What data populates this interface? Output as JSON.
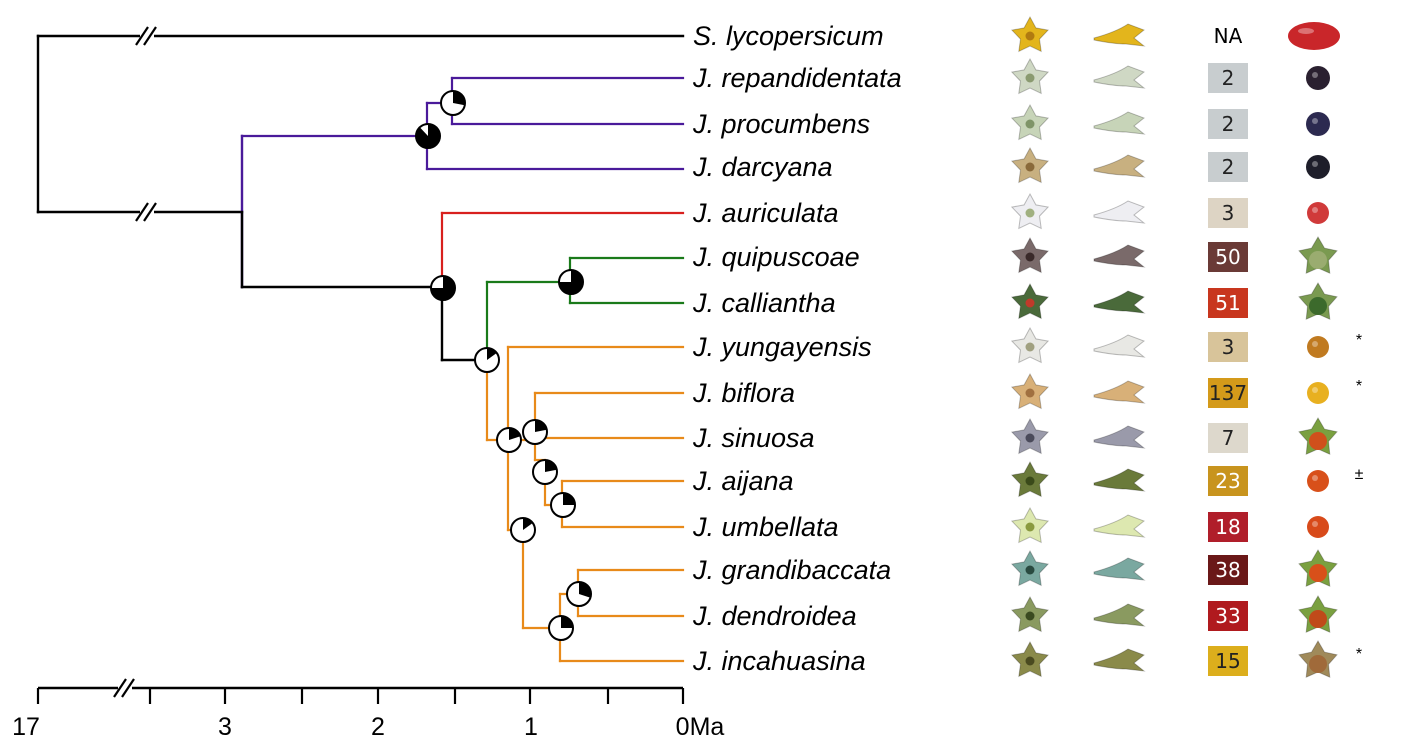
{
  "taxa": [
    {
      "name": "S. lycopersicum",
      "count": "NA",
      "count_color": "#ffffff",
      "count_text": "#000000",
      "mark": "",
      "flower": "#e3b51c",
      "flower_center": "#b07a10",
      "fruit": "#c9262a"
    },
    {
      "name": "J. repandidentata",
      "count": "2",
      "count_color": "#c8cdcf",
      "count_text": "#222222",
      "mark": "",
      "flower": "#cfd8c4",
      "flower_center": "#8a9a70",
      "fruit": "#2a2030"
    },
    {
      "name": "J. procumbens",
      "count": "2",
      "count_color": "#c8cdcf",
      "count_text": "#222222",
      "mark": "",
      "flower": "#c7d4b8",
      "flower_center": "#7f9468",
      "fruit": "#2c2a50"
    },
    {
      "name": "J. darcyana",
      "count": "2",
      "count_color": "#c8cdcf",
      "count_text": "#222222",
      "mark": "",
      "flower": "#c8b080",
      "flower_center": "#8a6a3a",
      "fruit": "#1e1e2a"
    },
    {
      "name": "J. auriculata",
      "count": "3",
      "count_color": "#ddd4c4",
      "count_text": "#222222",
      "mark": "",
      "flower": "#eeeef2",
      "flower_center": "#a0b080",
      "fruit": "#d03a3a"
    },
    {
      "name": "J. quipuscoae",
      "count": "50",
      "count_color": "#6a3a36",
      "count_text": "#ffffff",
      "mark": "",
      "flower": "#7a6a6a",
      "flower_center": "#3a2a2a",
      "fruit": "#9aac70"
    },
    {
      "name": "J. calliantha",
      "count": "51",
      "count_color": "#c8361e",
      "count_text": "#ffffff",
      "mark": "",
      "flower": "#4a6a3a",
      "flower_center": "#c03a2a",
      "fruit": "#3c6a2c"
    },
    {
      "name": "J. yungayensis",
      "count": "3",
      "count_color": "#d8c49a",
      "count_text": "#222222",
      "mark": "*",
      "flower": "#e8e8e4",
      "flower_center": "#a0a080",
      "fruit": "#c07a20"
    },
    {
      "name": "J. biflora",
      "count": "137",
      "count_color": "#d49a1a",
      "count_text": "#222222",
      "mark": "*",
      "flower": "#d8b078",
      "flower_center": "#a07040",
      "fruit": "#e8b020"
    },
    {
      "name": "J. sinuosa",
      "count": "7",
      "count_color": "#ddd8cc",
      "count_text": "#222222",
      "mark": "",
      "flower": "#9a9aaa",
      "flower_center": "#4a4a5a",
      "fruit": "#d0501c"
    },
    {
      "name": "J. aijana",
      "count": "23",
      "count_color": "#c8941e",
      "count_text": "#ffffff",
      "mark": "±",
      "flower": "#6a7a3a",
      "flower_center": "#3a4a1a",
      "fruit": "#d8501a"
    },
    {
      "name": "J. umbellata",
      "count": "18",
      "count_color": "#b01e2a",
      "count_text": "#ffffff",
      "mark": "",
      "flower": "#dde8b0",
      "flower_center": "#8a9a40",
      "fruit": "#d84a1a"
    },
    {
      "name": "J. grandibaccata",
      "count": "38",
      "count_color": "#6a1818",
      "count_text": "#ffffff",
      "mark": "",
      "flower": "#7aa8a0",
      "flower_center": "#2a4a40",
      "fruit": "#d8501a"
    },
    {
      "name": "J. dendroidea",
      "count": "33",
      "count_color": "#b01a1e",
      "count_text": "#ffffff",
      "mark": "",
      "flower": "#8a9a60",
      "flower_center": "#3a4a20",
      "fruit": "#c04a1a"
    },
    {
      "name": "J. incahuasina",
      "count": "15",
      "count_color": "#dcae1c",
      "count_text": "#222222",
      "mark": "*",
      "flower": "#8a8a4a",
      "flower_center": "#4a4a20",
      "fruit": "#a06a3a"
    }
  ],
  "axis": {
    "ticks": [
      "17",
      "3",
      "2",
      "1",
      "0Ma"
    ]
  },
  "colors": {
    "outgroup": "#000000",
    "clade_purple": "#4a1a9a",
    "clade_red": "#d8201e",
    "clade_green": "#1a7a1a",
    "clade_orange": "#e88a1a"
  }
}
